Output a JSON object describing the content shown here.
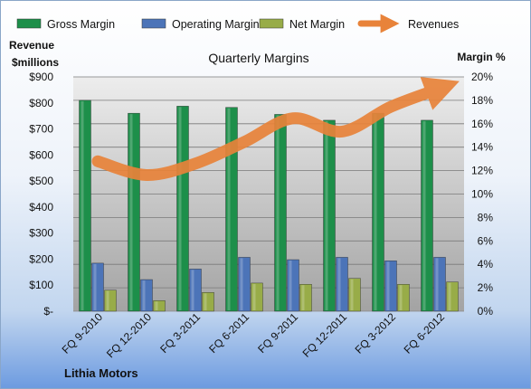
{
  "chart_data": {
    "type": "bar",
    "title": "Quarterly Margins",
    "company": "Lithia Motors",
    "left_axis_title": [
      "Revenue",
      "$millions"
    ],
    "right_axis_title": "Margin %",
    "categories": [
      "FQ 9-2010",
      "FQ 12-2010",
      "FQ 3-2011",
      "FQ 6-2011",
      "FQ 9-2011",
      "FQ 12-2011",
      "FQ 3-2012",
      "FQ 6-2012"
    ],
    "left_ticks": [
      "$-",
      "$100",
      "$200",
      "$300",
      "$400",
      "$500",
      "$600",
      "$700",
      "$800",
      "$900"
    ],
    "right_ticks": [
      "0%",
      "2%",
      "4%",
      "6%",
      "8%",
      "10%",
      "12%",
      "14%",
      "16%",
      "18%",
      "20%"
    ],
    "ylim_left": [
      0,
      900
    ],
    "ylim_right": [
      0,
      20
    ],
    "legend_position": "top",
    "grid": true,
    "series": [
      {
        "name": "Gross Margin",
        "axis": "right",
        "kind": "bar",
        "color": "#1d8f4a",
        "values": [
          18.0,
          16.9,
          17.5,
          17.4,
          16.8,
          16.3,
          16.9,
          16.3
        ]
      },
      {
        "name": "Operating Margin",
        "axis": "right",
        "kind": "bar",
        "color": "#4c74b8",
        "values": [
          4.1,
          2.7,
          3.6,
          4.6,
          4.4,
          4.6,
          4.3,
          4.6
        ]
      },
      {
        "name": "Net Margin",
        "axis": "right",
        "kind": "bar",
        "color": "#98ac48",
        "values": [
          1.8,
          0.9,
          1.6,
          2.4,
          2.3,
          2.8,
          2.3,
          2.5
        ]
      },
      {
        "name": "Revenues",
        "axis": "left",
        "kind": "line",
        "color": "#e8833a",
        "values": [
          576,
          523,
          567,
          650,
          741,
          690,
          785,
          855
        ]
      }
    ]
  }
}
